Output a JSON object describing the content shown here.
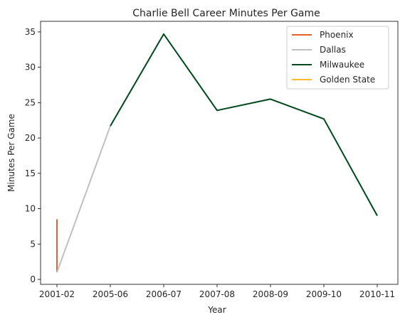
{
  "chart_data": {
    "type": "line",
    "title": "Charlie Bell  Career Minutes Per Game",
    "xlabel": "Year",
    "ylabel": "Minutes Per Game",
    "categories": [
      "2001-02",
      "2005-06",
      "2006-07",
      "2007-08",
      "2008-09",
      "2009-10",
      "2010-11"
    ],
    "ylim": [
      -0.7,
      36.5
    ],
    "yticks": [
      0,
      5,
      10,
      15,
      20,
      25,
      30,
      35
    ],
    "grid": false,
    "legend_position": "top-right",
    "series": [
      {
        "name": "Phoenix",
        "color": "#e5622a",
        "points": [
          {
            "x": "2001-02",
            "y": 8.5
          },
          {
            "x": "2001-02",
            "y": 1.0
          }
        ]
      },
      {
        "name": "Dallas",
        "color": "#c0c0c0",
        "points": [
          {
            "x": "2001-02",
            "y": 1.0
          },
          {
            "x": "2005-06",
            "y": 21.7
          }
        ]
      },
      {
        "name": "Milwaukee",
        "color": "#00471b",
        "points": [
          {
            "x": "2005-06",
            "y": 21.7
          },
          {
            "x": "2006-07",
            "y": 34.7
          },
          {
            "x": "2007-08",
            "y": 23.9
          },
          {
            "x": "2008-09",
            "y": 25.5
          },
          {
            "x": "2009-10",
            "y": 22.7
          },
          {
            "x": "2010-11",
            "y": 9.0
          }
        ]
      },
      {
        "name": "Golden State",
        "color": "#fdb927",
        "points": []
      }
    ]
  }
}
